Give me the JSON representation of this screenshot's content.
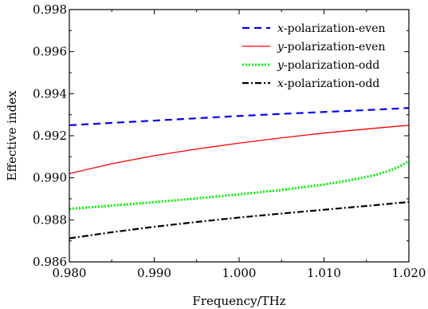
{
  "chart_data": {
    "type": "line",
    "xlabel": "Frequency/THz",
    "ylabel": "Effective index",
    "xlim": [
      0.98,
      1.02
    ],
    "ylim": [
      0.986,
      0.998
    ],
    "x_ticks": [
      "0.980",
      "0.990",
      "1.000",
      "1.010",
      "1.020"
    ],
    "y_ticks": [
      "0.986",
      "0.988",
      "0.990",
      "0.992",
      "0.994",
      "0.996",
      "0.998"
    ],
    "grid": false,
    "legend_position": "top-right",
    "series": [
      {
        "name_var": "x",
        "name": "-polarization-even",
        "color": "#0000ff",
        "dash": "dashed",
        "x": [
          0.98,
          0.985,
          0.99,
          0.995,
          1.0,
          1.005,
          1.01,
          1.015,
          1.02
        ],
        "y": [
          0.9925,
          0.99261,
          0.99272,
          0.99283,
          0.99294,
          0.99304,
          0.99313,
          0.99322,
          0.99332
        ]
      },
      {
        "name_var": "y",
        "name": "-polarization-even",
        "color": "#ff0000",
        "dash": "solid",
        "x": [
          0.98,
          0.985,
          0.99,
          0.995,
          1.0,
          1.005,
          1.01,
          1.015,
          1.02
        ],
        "y": [
          0.9902,
          0.99067,
          0.99105,
          0.99137,
          0.99165,
          0.9919,
          0.99213,
          0.99232,
          0.9925
        ]
      },
      {
        "name_var": "y",
        "name": "-polarization-odd",
        "color": "#00ee00",
        "dash": "dotted",
        "x": [
          0.98,
          0.985,
          0.99,
          0.995,
          1.0,
          1.005,
          1.01,
          1.013,
          1.016,
          1.018,
          1.019,
          1.02
        ],
        "y": [
          0.98852,
          0.98868,
          0.98884,
          0.98902,
          0.98921,
          0.98942,
          0.98968,
          0.98988,
          0.99013,
          0.99038,
          0.99056,
          0.9908
        ]
      },
      {
        "name_var": "x",
        "name": "-polarization-odd",
        "color": "#000000",
        "dash": "dashdot",
        "x": [
          0.98,
          0.985,
          0.99,
          0.995,
          1.0,
          1.005,
          1.01,
          1.015,
          1.02
        ],
        "y": [
          0.98712,
          0.98741,
          0.98767,
          0.9879,
          0.98811,
          0.9883,
          0.98848,
          0.98866,
          0.98885
        ]
      }
    ]
  }
}
